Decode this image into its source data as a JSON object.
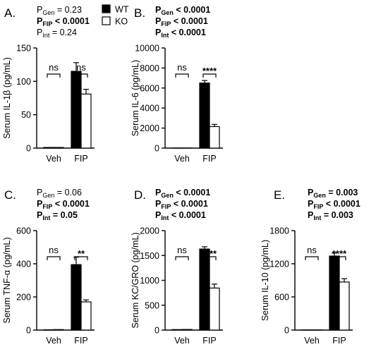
{
  "legend": [
    {
      "name": "WT",
      "color": "#000000"
    },
    {
      "name": "KO",
      "color": "#ffffff"
    }
  ],
  "chart_data": [
    {
      "panel": "A.",
      "type": "bar",
      "ylabel": "Serum IL-1β (pg/mL)",
      "categories": [
        "Veh",
        "FIP"
      ],
      "ylim": [
        0,
        150
      ],
      "yticks": [
        0,
        50,
        100,
        150
      ],
      "series": [
        {
          "name": "WT",
          "values": [
            1,
            115
          ],
          "errors": [
            0.5,
            13
          ]
        },
        {
          "name": "KO",
          "values": [
            1,
            81
          ],
          "errors": [
            0.5,
            7
          ]
        }
      ],
      "stats": [
        {
          "label": "P",
          "sub": "Gen",
          "text": " = 0.23",
          "bold": false
        },
        {
          "label": "P",
          "sub": "FIP",
          "text": " < 0.0001",
          "bold": true
        },
        {
          "label": "P",
          "sub": "Int",
          "text": " = 0.24",
          "bold": false
        }
      ],
      "annotations": [
        {
          "category": "Veh",
          "text": "ns",
          "at": 150
        },
        {
          "category": "FIP",
          "text": "ns",
          "at": 150
        }
      ]
    },
    {
      "panel": "B.",
      "type": "bar",
      "ylabel": "Serum IL-6 (pg/mL)",
      "categories": [
        "Veh",
        "FIP"
      ],
      "ylim": [
        0,
        10000
      ],
      "yticks": [
        0,
        2000,
        4000,
        6000,
        8000,
        10000
      ],
      "series": [
        {
          "name": "WT",
          "values": [
            10,
            6500
          ],
          "errors": [
            5,
            250
          ]
        },
        {
          "name": "KO",
          "values": [
            10,
            2150
          ],
          "errors": [
            5,
            220
          ]
        }
      ],
      "stats": [
        {
          "label": "P",
          "sub": "Gen",
          "text": " < 0.0001",
          "bold": true
        },
        {
          "label": "P",
          "sub": "FIP",
          "text": " < 0.0001",
          "bold": true
        },
        {
          "label": "P",
          "sub": "Int",
          "text": " < 0.0001",
          "bold": true
        }
      ],
      "annotations": [
        {
          "category": "Veh",
          "text": "ns",
          "at": 10000
        },
        {
          "category": "FIP",
          "text": "****",
          "at": 10000
        }
      ]
    },
    {
      "panel": "C.",
      "type": "bar",
      "ylabel": "Serum TNF-α (pg/mL)",
      "categories": [
        "Veh",
        "FIP"
      ],
      "ylim": [
        0,
        600
      ],
      "yticks": [
        0,
        200,
        400,
        600
      ],
      "series": [
        {
          "name": "WT",
          "values": [
            2,
            395
          ],
          "errors": [
            1,
            45
          ]
        },
        {
          "name": "KO",
          "values": [
            3,
            170
          ],
          "errors": [
            1,
            12
          ]
        }
      ],
      "stats": [
        {
          "label": "P",
          "sub": "Gen",
          "text": " = 0.06",
          "bold": false
        },
        {
          "label": "P",
          "sub": "FIP",
          "text": " < 0.0001",
          "bold": true
        },
        {
          "label": "P",
          "sub": "Int",
          "text": " = 0.05",
          "bold": true
        }
      ],
      "annotations": [
        {
          "category": "Veh",
          "text": "ns",
          "at": 600
        },
        {
          "category": "FIP",
          "text": "**",
          "at": 600
        }
      ]
    },
    {
      "panel": "D.",
      "type": "bar",
      "ylabel": "Serum KC/GRO (pg/mL)",
      "categories": [
        "Veh",
        "FIP"
      ],
      "ylim": [
        0,
        2000
      ],
      "yticks": [
        0,
        500,
        1000,
        1500,
        2000
      ],
      "series": [
        {
          "name": "WT",
          "values": [
            10,
            1630
          ],
          "errors": [
            5,
            45
          ]
        },
        {
          "name": "KO",
          "values": [
            12,
            845
          ],
          "errors": [
            5,
            80
          ]
        }
      ],
      "stats": [
        {
          "label": "P",
          "sub": "Gen",
          "text": " < 0.0001",
          "bold": true
        },
        {
          "label": "P",
          "sub": "FIP",
          "text": " < 0.0001",
          "bold": true
        },
        {
          "label": "P",
          "sub": "Int",
          "text": " < 0.0001",
          "bold": true
        }
      ],
      "annotations": [
        {
          "category": "Veh",
          "text": "ns",
          "at": 2000
        },
        {
          "category": "FIP",
          "text": "****",
          "at": 2000
        }
      ]
    },
    {
      "panel": "E.",
      "type": "bar",
      "ylabel": "Serum IL-10 (pg/mL)",
      "categories": [
        "Veh",
        "FIP"
      ],
      "ylim": [
        0,
        1800
      ],
      "yticks": [
        0,
        600,
        1200,
        1800
      ],
      "series": [
        {
          "name": "WT",
          "values": [
            3,
            1340
          ],
          "errors": [
            2,
            55
          ]
        },
        {
          "name": "KO",
          "values": [
            3,
            870
          ],
          "errors": [
            2,
            60
          ]
        }
      ],
      "stats": [
        {
          "label": "P",
          "sub": "Gen",
          "text": " = 0.003",
          "bold": true
        },
        {
          "label": "P",
          "sub": "FIP",
          "text": " < 0.0001",
          "bold": true
        },
        {
          "label": "P",
          "sub": "Int",
          "text": " = 0.003",
          "bold": true
        }
      ],
      "annotations": [
        {
          "category": "Veh",
          "text": "ns",
          "at": 1800
        },
        {
          "category": "FIP",
          "text": "****",
          "at": 1800
        }
      ]
    }
  ]
}
